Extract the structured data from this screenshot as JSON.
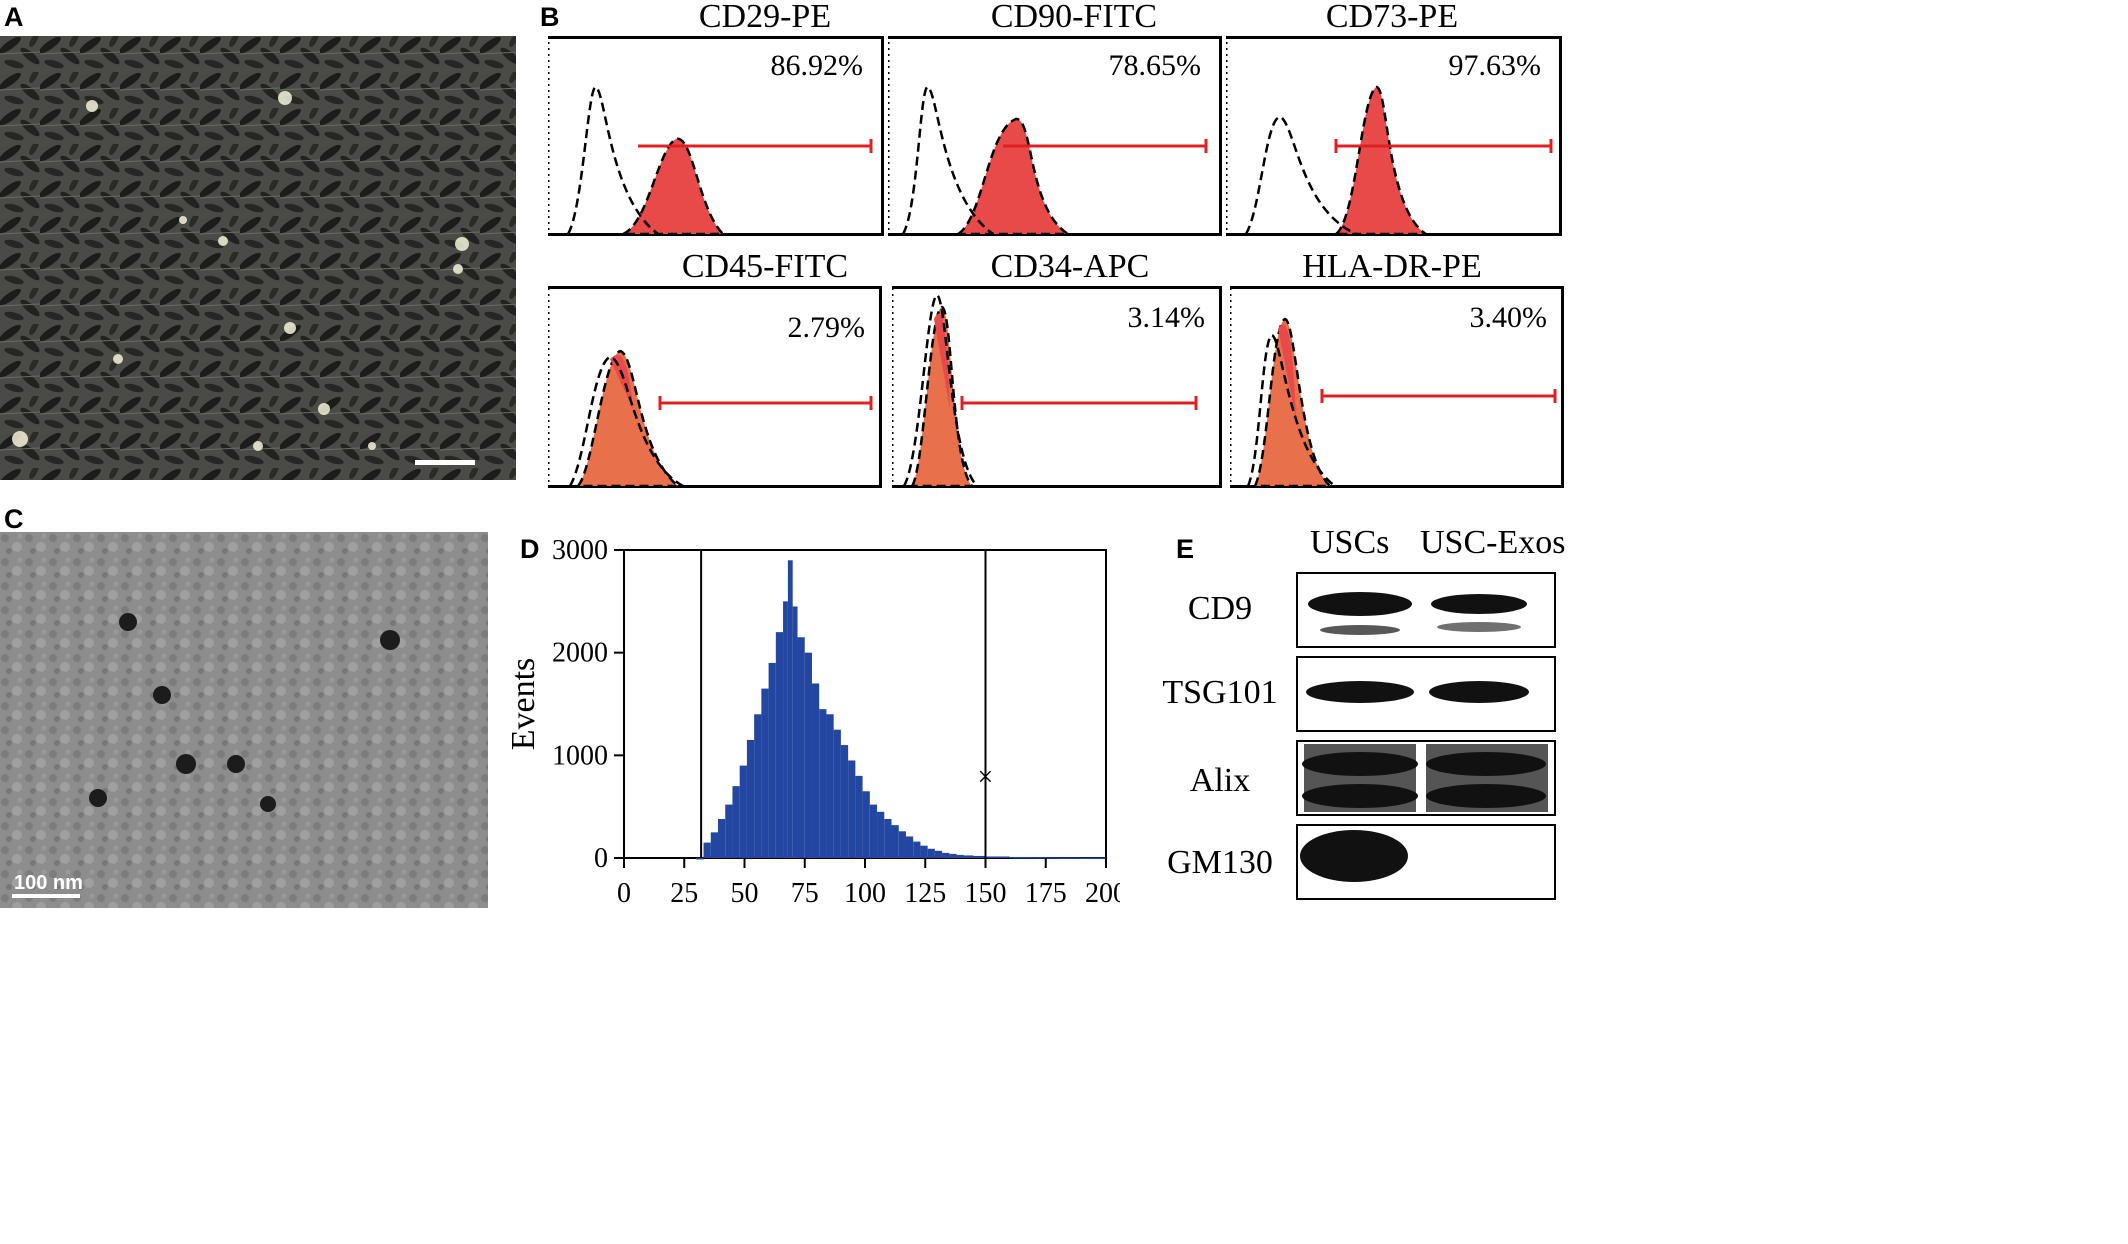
{
  "panels": {
    "a": "A",
    "b": "B",
    "c": "C",
    "d": "D",
    "e": "E"
  },
  "panel_c": {
    "scale_bar": "100 nm"
  },
  "flow_cytometry": [
    {
      "title": "CD29-PE",
      "percent": "86.92%"
    },
    {
      "title": "CD90-FITC",
      "percent": "78.65%"
    },
    {
      "title": "CD73-PE",
      "percent": "97.63%"
    },
    {
      "title": "CD45-FITC",
      "percent": "2.79%"
    },
    {
      "title": "CD34-APC",
      "percent": "3.14%"
    },
    {
      "title": "HLA-DR-PE",
      "percent": "3.40%"
    }
  ],
  "chart_data": {
    "type": "bar",
    "title": "",
    "xlabel": "",
    "ylabel": "Events",
    "xlim": [
      0,
      200
    ],
    "ylim": [
      0,
      3000
    ],
    "x_ticks": [
      "0",
      "25",
      "50",
      "75",
      "100",
      "125",
      "150",
      "175",
      "200"
    ],
    "y_ticks": [
      "0",
      "1000",
      "2000",
      "3000"
    ],
    "gate_lines": [
      32,
      150
    ],
    "series": [
      {
        "values": [
          [
            30,
            0
          ],
          [
            33,
            150
          ],
          [
            36,
            250
          ],
          [
            39,
            380
          ],
          [
            42,
            520
          ],
          [
            45,
            700
          ],
          [
            48,
            900
          ],
          [
            51,
            1150
          ],
          [
            54,
            1400
          ],
          [
            57,
            1650
          ],
          [
            60,
            1900
          ],
          [
            63,
            2200
          ],
          [
            66,
            2500
          ],
          [
            68,
            2900
          ],
          [
            70,
            2450
          ],
          [
            72,
            2150
          ],
          [
            75,
            2000
          ],
          [
            78,
            1700
          ],
          [
            81,
            1450
          ],
          [
            84,
            1400
          ],
          [
            87,
            1250
          ],
          [
            90,
            1100
          ],
          [
            93,
            950
          ],
          [
            96,
            800
          ],
          [
            99,
            650
          ],
          [
            102,
            520
          ],
          [
            105,
            450
          ],
          [
            108,
            380
          ],
          [
            111,
            320
          ],
          [
            114,
            260
          ],
          [
            117,
            210
          ],
          [
            120,
            160
          ],
          [
            123,
            120
          ],
          [
            126,
            90
          ],
          [
            129,
            70
          ],
          [
            132,
            50
          ],
          [
            135,
            40
          ],
          [
            138,
            30
          ],
          [
            141,
            25
          ],
          [
            145,
            20
          ],
          [
            150,
            15
          ],
          [
            160,
            10
          ],
          [
            170,
            8
          ],
          [
            180,
            6
          ],
          [
            190,
            5
          ],
          [
            200,
            5
          ]
        ]
      }
    ]
  },
  "western_blot": {
    "columns": [
      "USCs",
      "USC-Exos"
    ],
    "rows": [
      "CD9",
      "TSG101",
      "Alix",
      "GM130"
    ]
  }
}
